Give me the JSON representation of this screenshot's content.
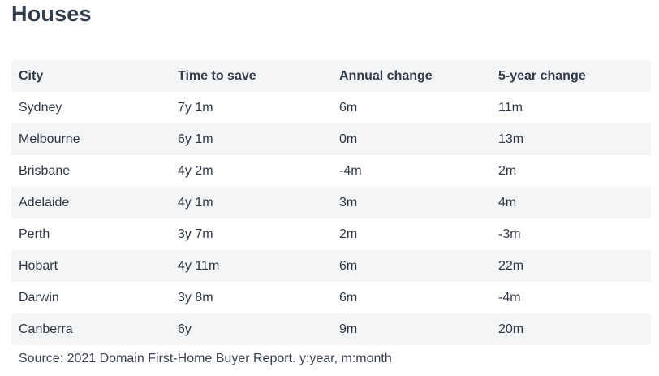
{
  "title": "Houses",
  "table": {
    "headers": [
      "City",
      "Time to save",
      "Annual change",
      "5-year change"
    ],
    "rows": [
      [
        "Sydney",
        "7y 1m",
        "6m",
        "11m"
      ],
      [
        "Melbourne",
        "6y 1m",
        "0m",
        "13m"
      ],
      [
        "Brisbane",
        "4y 2m",
        "-4m",
        "2m"
      ],
      [
        "Adelaide",
        "4y 1m",
        "3m",
        "4m"
      ],
      [
        "Perth",
        "3y 7m",
        "2m",
        "-3m"
      ],
      [
        "Hobart",
        "4y 11m",
        "6m",
        "22m"
      ],
      [
        "Darwin",
        "3y 8m",
        "6m",
        "-4m"
      ],
      [
        "Canberra",
        "6y",
        "9m",
        "20m"
      ]
    ]
  },
  "source": "Source: 2021 Domain First-Home Buyer Report. y:year, m:month",
  "colors": {
    "stripe": "#f4f5f6",
    "text": "#2f3746",
    "heading": "#333c4c"
  }
}
